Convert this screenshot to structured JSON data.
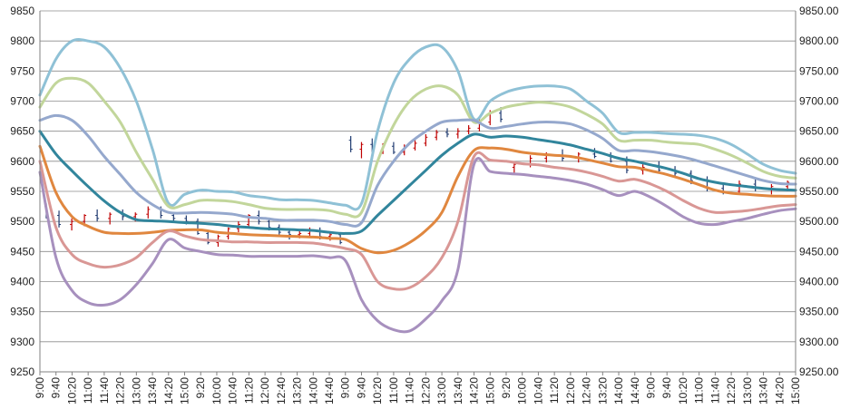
{
  "chart_data": {
    "type": "line",
    "title": "",
    "xlabel": "",
    "ylabel": "",
    "ylim": [
      9250,
      9850
    ],
    "grid": true,
    "legend": "none",
    "y_ticks_left": [
      "9250",
      "9300",
      "9350",
      "9400",
      "9450",
      "9500",
      "9550",
      "9600",
      "9650",
      "9700",
      "9750",
      "9800",
      "9850"
    ],
    "y_ticks_right": [
      "9250.00",
      "9300.00",
      "9350.00",
      "9400.00",
      "9450.00",
      "9500.00",
      "9550.00",
      "9600.00",
      "9650.00",
      "9700.00",
      "9750.00",
      "9800.00",
      "9850.00"
    ],
    "x_tick_labels": [
      "9:00",
      "9:40",
      "10:20",
      "11:00",
      "11:40",
      "12:20",
      "13:00",
      "13:40",
      "14:20",
      "15:00",
      "9:20",
      "10:00",
      "10:40",
      "11:20",
      "12:00",
      "12:40",
      "13:20",
      "14:00",
      "14:40",
      "9:00",
      "9:40",
      "10:20",
      "11:00",
      "11:40",
      "12:20",
      "13:00",
      "13:40",
      "14:20",
      "15:00",
      "9:20",
      "10:00",
      "10:40",
      "11:20",
      "12:00",
      "12:40",
      "13:20",
      "14:00",
      "14:40",
      "9:00",
      "9:40",
      "10:20",
      "11:00",
      "11:40",
      "12:20",
      "13:00",
      "13:40",
      "14:20",
      "15:00"
    ],
    "x": [
      0,
      2,
      4,
      6,
      8,
      10,
      12,
      14,
      16,
      18,
      20,
      22,
      24,
      26,
      28,
      30,
      32,
      34,
      36,
      38,
      40,
      42,
      44,
      46,
      48,
      50,
      52,
      54,
      56,
      58,
      60,
      62,
      64,
      66,
      68,
      70,
      72,
      74,
      76,
      78,
      80,
      82,
      84,
      86,
      88,
      90,
      92,
      94
    ],
    "x_range": [
      0,
      94
    ],
    "series": [
      {
        "color": "#8fc1d6",
        "values": [
          9710,
          9770,
          9800,
          9800,
          9790,
          9755,
          9700,
          9620,
          9530,
          9545,
          9552,
          9550,
          9549,
          9543,
          9540,
          9536,
          9536,
          9535,
          9531,
          9527,
          9530,
          9650,
          9730,
          9770,
          9790,
          9790,
          9750,
          9670,
          9700,
          9715,
          9722,
          9725,
          9725,
          9720,
          9700,
          9680,
          9648,
          9648,
          9648,
          9646,
          9645,
          9643,
          9638,
          9628,
          9612,
          9595,
          9585,
          9580
        ]
      },
      {
        "color": "#c2d69b",
        "values": [
          9690,
          9730,
          9738,
          9730,
          9700,
          9665,
          9615,
          9570,
          9525,
          9528,
          9535,
          9535,
          9533,
          9528,
          9522,
          9520,
          9520,
          9520,
          9518,
          9512,
          9515,
          9600,
          9660,
          9700,
          9720,
          9725,
          9710,
          9665,
          9680,
          9690,
          9695,
          9698,
          9696,
          9690,
          9678,
          9662,
          9635,
          9635,
          9635,
          9632,
          9630,
          9628,
          9620,
          9610,
          9597,
          9583,
          9575,
          9572
        ]
      },
      {
        "color": "#95a8cd",
        "values": [
          9668,
          9676,
          9668,
          9642,
          9608,
          9578,
          9548,
          9528,
          9515,
          9514,
          9515,
          9514,
          9512,
          9507,
          9505,
          9502,
          9502,
          9502,
          9500,
          9495,
          9498,
          9560,
          9600,
          9630,
          9650,
          9665,
          9668,
          9668,
          9655,
          9658,
          9662,
          9665,
          9665,
          9662,
          9652,
          9638,
          9618,
          9618,
          9616,
          9612,
          9607,
          9600,
          9592,
          9584,
          9576,
          9568,
          9563,
          9562
        ]
      },
      {
        "color": "#31859c",
        "values": [
          9650,
          9612,
          9584,
          9558,
          9534,
          9515,
          9503,
          9501,
          9500,
          9498,
          9497,
          9495,
          9492,
          9490,
          9488,
          9487,
          9486,
          9485,
          9482,
          9480,
          9484,
          9510,
          9535,
          9560,
          9585,
          9610,
          9630,
          9645,
          9640,
          9642,
          9640,
          9636,
          9632,
          9627,
          9620,
          9613,
          9605,
          9600,
          9594,
          9588,
          9580,
          9571,
          9565,
          9561,
          9558,
          9555,
          9553,
          9552
        ]
      },
      {
        "color": "#e0873f",
        "values": [
          9625,
          9548,
          9508,
          9492,
          9482,
          9480,
          9480,
          9482,
          9485,
          9486,
          9486,
          9482,
          9480,
          9478,
          9477,
          9476,
          9475,
          9474,
          9472,
          9470,
          9455,
          9448,
          9452,
          9465,
          9485,
          9515,
          9575,
          9618,
          9622,
          9620,
          9615,
          9612,
          9610,
          9608,
          9603,
          9597,
          9591,
          9590,
          9584,
          9578,
          9570,
          9561,
          9552,
          9547,
          9545,
          9543,
          9542,
          9542
        ]
      },
      {
        "color": "#d99795",
        "values": [
          9600,
          9490,
          9445,
          9430,
          9424,
          9428,
          9440,
          9465,
          9484,
          9476,
          9470,
          9468,
          9466,
          9466,
          9465,
          9465,
          9465,
          9464,
          9460,
          9455,
          9445,
          9400,
          9388,
          9390,
          9408,
          9440,
          9500,
          9608,
          9602,
          9600,
          9596,
          9594,
          9590,
          9587,
          9582,
          9575,
          9567,
          9570,
          9562,
          9550,
          9535,
          9522,
          9515,
          9516,
          9518,
          9522,
          9526,
          9528
        ]
      },
      {
        "color": "#a790be",
        "values": [
          9582,
          9440,
          9385,
          9365,
          9361,
          9370,
          9395,
          9430,
          9470,
          9456,
          9450,
          9445,
          9444,
          9442,
          9442,
          9442,
          9442,
          9443,
          9440,
          9435,
          9370,
          9335,
          9320,
          9318,
          9338,
          9368,
          9420,
          9595,
          9583,
          9580,
          9578,
          9575,
          9572,
          9568,
          9562,
          9553,
          9543,
          9550,
          9540,
          9525,
          9508,
          9497,
          9495,
          9500,
          9505,
          9512,
          9518,
          9521
        ]
      }
    ],
    "bars": {
      "up_color": "#c00000",
      "down_color": "#1f3a70",
      "values": [
        [
          9525,
          9530,
          9505,
          9510
        ],
        [
          9510,
          9518,
          9490,
          9495
        ],
        [
          9495,
          9505,
          9485,
          9500
        ],
        [
          9500,
          9512,
          9492,
          9510
        ],
        [
          9510,
          9520,
          9500,
          9505
        ],
        [
          9505,
          9515,
          9495,
          9512
        ],
        [
          9512,
          9520,
          9502,
          9508
        ],
        [
          9508,
          9515,
          9500,
          9512
        ],
        [
          9512,
          9525,
          9505,
          9520
        ],
        [
          9520,
          9525,
          9505,
          9510
        ],
        [
          9510,
          9515,
          9500,
          9505
        ],
        [
          9505,
          9510,
          9495,
          9500
        ],
        [
          9500,
          9505,
          9478,
          9480
        ],
        [
          9480,
          9485,
          9462,
          9465
        ],
        [
          9465,
          9478,
          9458,
          9475
        ],
        [
          9475,
          9490,
          9470,
          9488
        ],
        [
          9488,
          9500,
          9482,
          9495
        ],
        [
          9495,
          9512,
          9490,
          9510
        ],
        [
          9510,
          9518,
          9495,
          9500
        ],
        [
          9500,
          9505,
          9485,
          9490
        ],
        [
          9490,
          9495,
          9478,
          9482
        ],
        [
          9482,
          9488,
          9470,
          9478
        ],
        [
          9478,
          9485,
          9472,
          9480
        ],
        [
          9480,
          9490,
          9475,
          9485
        ],
        [
          9485,
          9490,
          9470,
          9475
        ],
        [
          9475,
          9482,
          9468,
          9478
        ],
        [
          9478,
          9480,
          9462,
          9465
        ],
        [
          9635,
          9642,
          9615,
          9620
        ],
        [
          9620,
          9632,
          9605,
          9628
        ],
        [
          9628,
          9638,
          9615,
          9618
        ],
        [
          9618,
          9630,
          9612,
          9625
        ],
        [
          9625,
          9632,
          9612,
          9615
        ],
        [
          9615,
          9628,
          9610,
          9622
        ],
        [
          9622,
          9635,
          9618,
          9630
        ],
        [
          9630,
          9645,
          9625,
          9640
        ],
        [
          9640,
          9652,
          9635,
          9648
        ],
        [
          9648,
          9655,
          9640,
          9645
        ],
        [
          9645,
          9655,
          9638,
          9650
        ],
        [
          9650,
          9660,
          9645,
          9655
        ],
        [
          9655,
          9670,
          9650,
          9665
        ],
        [
          9665,
          9685,
          9660,
          9680
        ],
        [
          9680,
          9690,
          9665,
          9670
        ],
        [
          9590,
          9600,
          9580,
          9595
        ],
        [
          9595,
          9610,
          9590,
          9605
        ],
        [
          9605,
          9615,
          9598,
          9610
        ],
        [
          9610,
          9620,
          9600,
          9605
        ],
        [
          9605,
          9615,
          9598,
          9612
        ],
        [
          9612,
          9622,
          9605,
          9608
        ],
        [
          9608,
          9615,
          9598,
          9600
        ],
        [
          9600,
          9608,
          9580,
          9585
        ],
        [
          9585,
          9595,
          9578,
          9590
        ],
        [
          9590,
          9600,
          9580,
          9585
        ],
        [
          9585,
          9592,
          9575,
          9580
        ],
        [
          9580,
          9585,
          9562,
          9568
        ],
        [
          9568,
          9575,
          9550,
          9555
        ],
        [
          9555,
          9562,
          9545,
          9550
        ],
        [
          9550,
          9568,
          9545,
          9562
        ],
        [
          9562,
          9570,
          9550,
          9555
        ],
        [
          9555,
          9562,
          9545,
          9558
        ],
        [
          9558,
          9568,
          9550,
          9565
        ]
      ]
    }
  }
}
